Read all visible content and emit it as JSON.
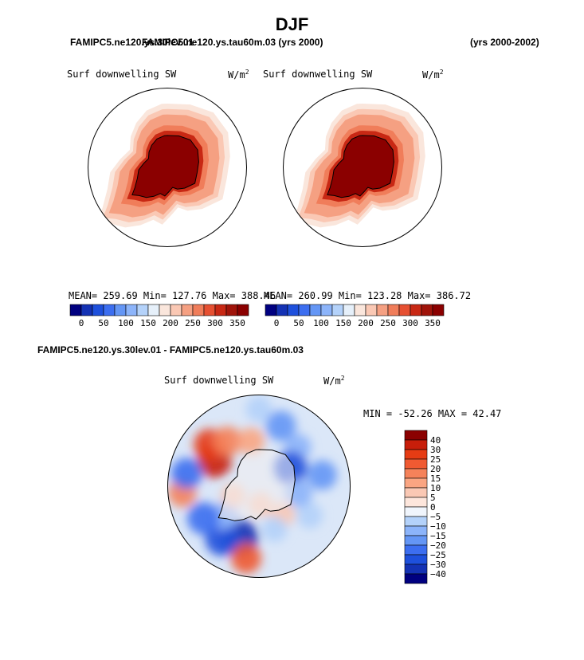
{
  "page": {
    "season": "DJF",
    "case_a": "FAMIPC5.ne120.ys.30lev.01",
    "case_b": "FAMIPC5.ne120.ys.tau60m.03",
    "header_overlap_text": "FAMIPC5.ne120.ys.tau60m.03 (yrs 2000)",
    "years_label": "(yrs 2000-2002)",
    "diff_title": "FAMIPC5.ne120.ys.30lev.01 - FAMIPC5.ne120.ys.tau60m.03"
  },
  "colors": {
    "land_fill": "#8b0000",
    "coast": "#000000"
  },
  "chart_data": [
    {
      "type": "heatmap",
      "projection": "south-polar-stereographic",
      "variable": "Surf downwelling SW",
      "units_base": "W/m",
      "units_exp": "2",
      "stats": "MEAN= 259.69  Min= 127.76  Max= 388.46",
      "mean": 259.69,
      "min": 127.76,
      "max": 388.46,
      "ring_levels": [
        180,
        205,
        225,
        245,
        270,
        300,
        340,
        388
      ],
      "colorbar": {
        "orientation": "horizontal",
        "labels": [
          "0",
          "50",
          "100",
          "150",
          "200",
          "250",
          "300",
          "350"
        ],
        "levels": [
          0,
          25,
          50,
          75,
          100,
          125,
          150,
          175,
          200,
          225,
          250,
          275,
          300,
          325,
          350
        ],
        "colors": [
          "#000080",
          "#1432b4",
          "#1e50dc",
          "#3c6ef0",
          "#6496f5",
          "#8cb4fa",
          "#b4d2fa",
          "#e6f0fa",
          "#fae6dc",
          "#fac8b4",
          "#f5a082",
          "#f07d5a",
          "#e65032",
          "#c82814",
          "#a0140a",
          "#8b0000"
        ]
      }
    },
    {
      "type": "heatmap",
      "projection": "south-polar-stereographic",
      "variable": "Surf downwelling SW",
      "units_base": "W/m",
      "units_exp": "2",
      "stats": "MEAN= 260.99  Min= 123.28  Max= 386.72",
      "mean": 260.99,
      "min": 123.28,
      "max": 386.72,
      "ring_levels": [
        180,
        205,
        225,
        245,
        270,
        300,
        340,
        386
      ],
      "colorbar": {
        "orientation": "horizontal",
        "labels": [
          "0",
          "50",
          "100",
          "150",
          "200",
          "250",
          "300",
          "350"
        ],
        "levels": [
          0,
          25,
          50,
          75,
          100,
          125,
          150,
          175,
          200,
          225,
          250,
          275,
          300,
          325,
          350
        ],
        "colors": [
          "#000080",
          "#1432b4",
          "#1e50dc",
          "#3c6ef0",
          "#6496f5",
          "#8cb4fa",
          "#b4d2fa",
          "#e6f0fa",
          "#fae6dc",
          "#fac8b4",
          "#f5a082",
          "#f07d5a",
          "#e65032",
          "#c82814",
          "#a0140a",
          "#8b0000"
        ]
      }
    },
    {
      "type": "heatmap",
      "projection": "south-polar-stereographic",
      "variable": "Surf downwelling SW",
      "units_base": "W/m",
      "units_exp": "2",
      "stats": "MIN = -52.26 MAX =  42.47",
      "min": -52.26,
      "max": 42.47,
      "diff_patches": [
        {
          "lon": 200,
          "lat": -60,
          "v": -35
        },
        {
          "lon": 215,
          "lat": -55,
          "v": -30
        },
        {
          "lon": 230,
          "lat": -65,
          "v": -15
        },
        {
          "lon": 190,
          "lat": -50,
          "v": 20
        },
        {
          "lon": 240,
          "lat": -55,
          "v": -25
        },
        {
          "lon": 300,
          "lat": -62,
          "v": 30
        },
        {
          "lon": 310,
          "lat": -55,
          "v": 25
        },
        {
          "lon": 325,
          "lat": -60,
          "v": 18
        },
        {
          "lon": 350,
          "lat": -65,
          "v": 12
        },
        {
          "lon": 20,
          "lat": -55,
          "v": -20
        },
        {
          "lon": 45,
          "lat": -60,
          "v": -12
        },
        {
          "lon": 80,
          "lat": -55,
          "v": -18
        },
        {
          "lon": 120,
          "lat": -58,
          "v": -10
        },
        {
          "lon": 140,
          "lat": -70,
          "v": 8
        },
        {
          "lon": 160,
          "lat": -65,
          "v": -8
        },
        {
          "lon": 265,
          "lat": -48,
          "v": 15
        },
        {
          "lon": 280,
          "lat": -50,
          "v": -22
        },
        {
          "lon": 60,
          "lat": -70,
          "v": -28
        },
        {
          "lon": 100,
          "lat": -68,
          "v": -14
        },
        {
          "lon": 0,
          "lat": -48,
          "v": -10
        },
        {
          "lon": 250,
          "lat": -75,
          "v": 5
        },
        {
          "lon": 175,
          "lat": -80,
          "v": 6
        }
      ],
      "colorbar": {
        "orientation": "vertical",
        "labels": [
          "40",
          "30",
          "25",
          "20",
          "15",
          "10",
          "5",
          "0",
          "−5",
          "−10",
          "−15",
          "−20",
          "−25",
          "−30",
          "−40"
        ],
        "colors": [
          "#8b0000",
          "#c81e0a",
          "#e63c14",
          "#f05a32",
          "#f5825a",
          "#faa582",
          "#fac8b4",
          "#fde6dc",
          "#f0f5fc",
          "#b4d2fa",
          "#8cb4fa",
          "#6496f5",
          "#3c6ef0",
          "#1e50dc",
          "#1432b4",
          "#000080"
        ]
      }
    }
  ]
}
